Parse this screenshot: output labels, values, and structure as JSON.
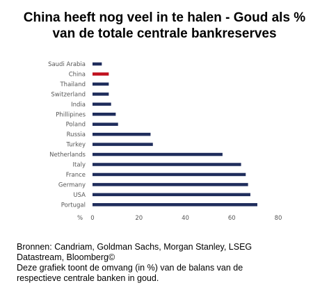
{
  "chart_data": {
    "type": "bar",
    "orientation": "horizontal",
    "title_lines": [
      "China heeft nog veel in te halen - Goud als %",
      "van de totale centrale bankreserves"
    ],
    "categories": [
      "Saudi Arabia",
      "China",
      "Thailand",
      "Switzerland",
      "India",
      "Phillipines",
      "Poland",
      "Russia",
      "Turkey",
      "Netherlands",
      "Italy",
      "France",
      "Germany",
      "USA",
      "Portugal"
    ],
    "values": [
      4,
      7,
      7,
      7,
      8,
      10,
      11,
      25,
      26,
      56,
      64,
      66,
      67,
      68,
      71
    ],
    "xlim": [
      0,
      80
    ],
    "xticks": [
      "0",
      "20",
      "40",
      "60",
      "80"
    ],
    "xunit": "%",
    "colors": {
      "default": "#1f2d5c",
      "highlight": "#c0101e"
    },
    "highlight_category": "China",
    "grid": false
  },
  "footer_lines": [
    "Bronnen: Candriam, Goldman Sachs, Morgan Stanley, LSEG",
    "Datastream, Bloomberg©",
    "Deze grafiek toont de omvang (in %) van de balans van de",
    "respectieve centrale banken in goud."
  ]
}
